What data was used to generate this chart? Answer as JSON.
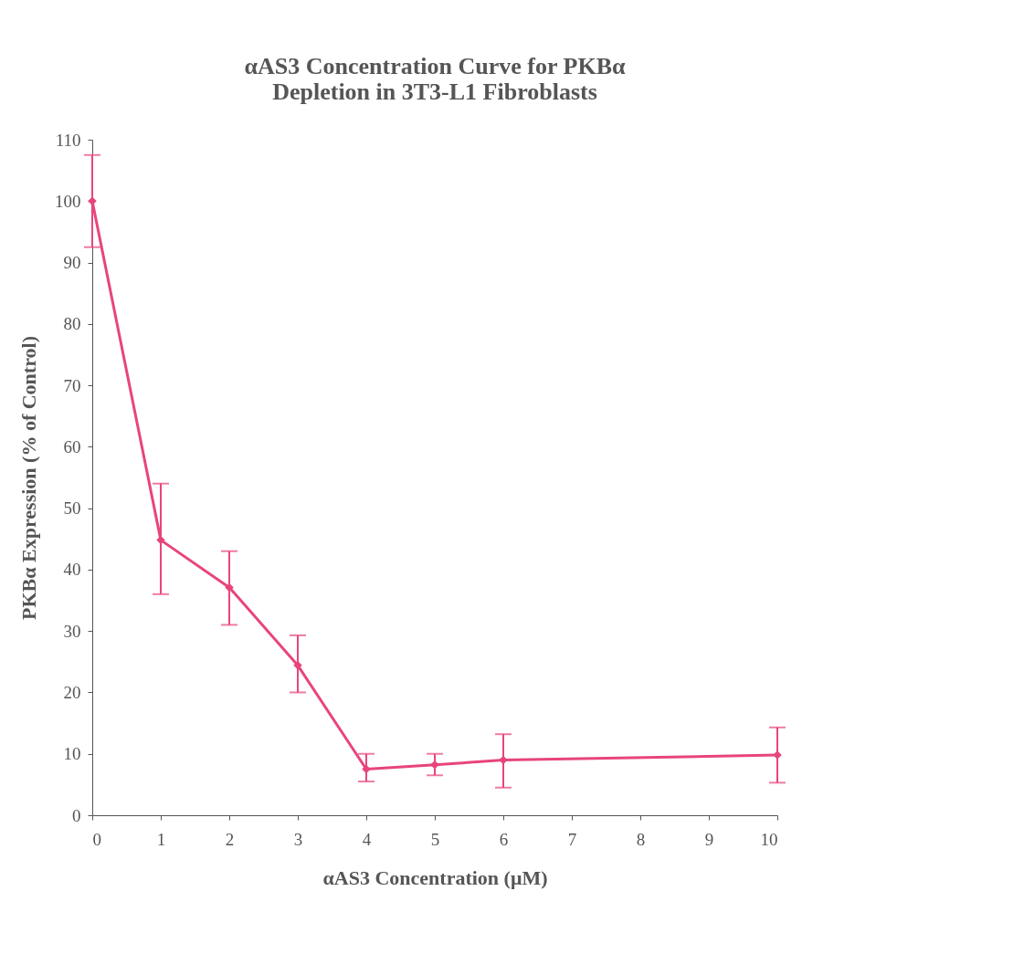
{
  "chart_data": {
    "type": "line",
    "title": "αAS3 Concentration Curve for PKBα\nDepletion in 3T3-L1 Fibroblasts",
    "xlabel": "αAS3 Concentration (μM)",
    "ylabel": "PKBα Expression (% of Control)",
    "x": [
      0,
      1,
      2,
      3,
      4,
      5,
      6,
      10
    ],
    "series": [
      {
        "color": "#e8457a",
        "values": [
          100,
          44.8,
          37.1,
          24.4,
          7.5,
          8.2,
          9.0,
          9.8
        ],
        "errors": [
          [
            92.5,
            107.5
          ],
          [
            36,
            54
          ],
          [
            31,
            43
          ],
          [
            20,
            29.3
          ],
          [
            5.5,
            10
          ],
          [
            6.5,
            10
          ],
          [
            4.5,
            13.2
          ],
          [
            5.3,
            14.3
          ]
        ]
      }
    ],
    "xlim": [
      0,
      10
    ],
    "xticks": [
      0,
      1,
      2,
      3,
      4,
      5,
      6,
      7,
      8,
      9,
      10
    ],
    "ylim": [
      0,
      110
    ],
    "yticks": [
      0,
      10,
      20,
      30,
      40,
      50,
      60,
      70,
      80,
      90,
      100,
      110
    ],
    "grid": false,
    "marker": "diamond",
    "line_style": "solid"
  }
}
